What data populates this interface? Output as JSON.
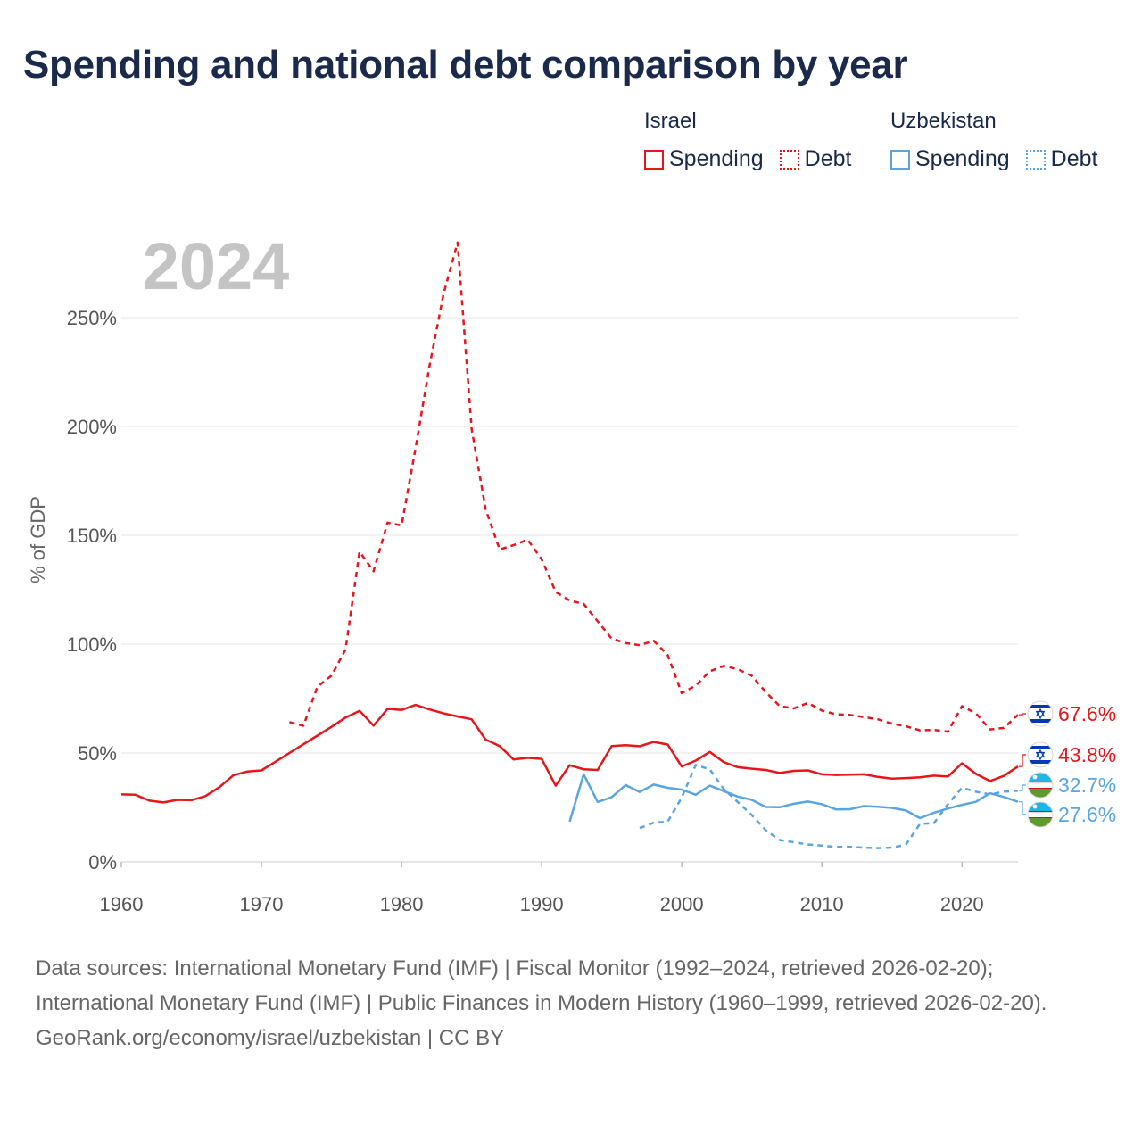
{
  "title": "Spending and national debt comparison by year",
  "legend": {
    "groups": [
      {
        "name": "Israel",
        "items": [
          {
            "label": "Spending",
            "color": "#e8151b",
            "style": "solid"
          },
          {
            "label": "Debt",
            "color": "#e8151b",
            "style": "dotted"
          }
        ]
      },
      {
        "name": "Uzbekistan",
        "items": [
          {
            "label": "Spending",
            "color": "#5aa5e0",
            "style": "solid"
          },
          {
            "label": "Debt",
            "color": "#5aa5e0",
            "style": "dotted"
          }
        ]
      }
    ]
  },
  "footer": {
    "sources": "Data sources: International Monetary Fund (IMF) | Fiscal Monitor (1992–2024, retrieved 2026-02-20); International Monetary Fund (IMF) | Public Finances in Modern History (1960–1999, retrieved 2026-02-20).",
    "credit": "GeoRank.org/economy/israel/uzbekistan | CC BY"
  },
  "chart_data": {
    "type": "line",
    "year_label": "2024",
    "ylabel": "% of GDP",
    "xlabel": "",
    "xlim": [
      1960,
      2024
    ],
    "ylim": [
      0,
      260
    ],
    "x_ticks": [
      {
        "value": 1960,
        "label": "1960"
      },
      {
        "value": 1970,
        "label": "1970"
      },
      {
        "value": 1980,
        "label": "1980"
      },
      {
        "value": 1990,
        "label": "1990"
      },
      {
        "value": 2000,
        "label": "2000"
      },
      {
        "value": 2010,
        "label": "2010"
      },
      {
        "value": 2020,
        "label": "2020"
      }
    ],
    "y_ticks": [
      {
        "value": 0,
        "label": "0%"
      },
      {
        "value": 50,
        "label": "50%"
      },
      {
        "value": 100,
        "label": "100%"
      },
      {
        "value": 150,
        "label": "150%"
      },
      {
        "value": 200,
        "label": "200%"
      },
      {
        "value": 250,
        "label": "250%"
      }
    ],
    "grid": true,
    "series": [
      {
        "name": "Israel Spending",
        "country": "Israel",
        "metric": "Spending",
        "color": "#e8151b",
        "dash": "solid",
        "end_label": "43.8%",
        "flag": "israel",
        "points": [
          [
            1960,
            31
          ],
          [
            1961,
            30.8
          ],
          [
            1962,
            28.1
          ],
          [
            1963,
            27.3
          ],
          [
            1964,
            28.5
          ],
          [
            1965,
            28.3
          ],
          [
            1966,
            30.2
          ],
          [
            1967,
            34.3
          ],
          [
            1968,
            39.8
          ],
          [
            1969,
            41.5
          ],
          [
            1970,
            42
          ],
          [
            1971,
            46
          ],
          [
            1972,
            50
          ],
          [
            1973,
            54
          ],
          [
            1974,
            58
          ],
          [
            1975,
            62
          ],
          [
            1976,
            66.3
          ],
          [
            1977,
            69.4
          ],
          [
            1978,
            62.6
          ],
          [
            1979,
            70.3
          ],
          [
            1980,
            69.8
          ],
          [
            1981,
            72.1
          ],
          [
            1982,
            70
          ],
          [
            1983,
            68.2
          ],
          [
            1984,
            66.8
          ],
          [
            1985,
            65.5
          ],
          [
            1986,
            56.2
          ],
          [
            1987,
            53.2
          ],
          [
            1988,
            47
          ],
          [
            1989,
            47.8
          ],
          [
            1990,
            47.3
          ],
          [
            1991,
            35
          ],
          [
            1992,
            44.4
          ],
          [
            1993,
            42.5
          ],
          [
            1994,
            42.2
          ],
          [
            1995,
            53.2
          ],
          [
            1996,
            53.6
          ],
          [
            1997,
            53.1
          ],
          [
            1998,
            55.1
          ],
          [
            1999,
            53.9
          ],
          [
            2000,
            43.8
          ],
          [
            2001,
            46.5
          ],
          [
            2002,
            50.5
          ],
          [
            2003,
            45.8
          ],
          [
            2004,
            43.5
          ],
          [
            2005,
            42.8
          ],
          [
            2006,
            42.2
          ],
          [
            2007,
            40.8
          ],
          [
            2008,
            41.8
          ],
          [
            2009,
            42
          ],
          [
            2010,
            40.2
          ],
          [
            2011,
            39.9
          ],
          [
            2012,
            40.1
          ],
          [
            2013,
            40.2
          ],
          [
            2014,
            39
          ],
          [
            2015,
            38.2
          ],
          [
            2016,
            38.5
          ],
          [
            2017,
            38.8
          ],
          [
            2018,
            39.6
          ],
          [
            2019,
            39.2
          ],
          [
            2020,
            45.3
          ],
          [
            2021,
            40.4
          ],
          [
            2022,
            37.1
          ],
          [
            2023,
            39.5
          ],
          [
            2024,
            43.8
          ]
        ]
      },
      {
        "name": "Israel Debt",
        "country": "Israel",
        "metric": "Debt",
        "color": "#e8151b",
        "dash": "dashed",
        "end_label": "67.6%",
        "flag": "israel",
        "points": [
          [
            1972,
            64.2
          ],
          [
            1973,
            62.5
          ],
          [
            1974,
            80.5
          ],
          [
            1975,
            85.5
          ],
          [
            1976,
            97.5
          ],
          [
            1977,
            142.5
          ],
          [
            1978,
            133.5
          ],
          [
            1979,
            155.8
          ],
          [
            1980,
            154.5
          ],
          [
            1981,
            190
          ],
          [
            1982,
            228
          ],
          [
            1983,
            261
          ],
          [
            1984,
            284.5
          ],
          [
            1985,
            199
          ],
          [
            1986,
            162
          ],
          [
            1987,
            143.5
          ],
          [
            1988,
            145.5
          ],
          [
            1989,
            148
          ],
          [
            1990,
            139
          ],
          [
            1991,
            124
          ],
          [
            1992,
            120
          ],
          [
            1993,
            118.5
          ],
          [
            1994,
            110.5
          ],
          [
            1995,
            102.5
          ],
          [
            1996,
            100.5
          ],
          [
            1997,
            99.5
          ],
          [
            1998,
            101.5
          ],
          [
            1999,
            95
          ],
          [
            2000,
            77.5
          ],
          [
            2001,
            81
          ],
          [
            2002,
            87.5
          ],
          [
            2003,
            90
          ],
          [
            2004,
            88.5
          ],
          [
            2005,
            85.5
          ],
          [
            2006,
            78
          ],
          [
            2007,
            71.5
          ],
          [
            2008,
            70.5
          ],
          [
            2009,
            73
          ],
          [
            2010,
            69.5
          ],
          [
            2011,
            67.8
          ],
          [
            2012,
            67.5
          ],
          [
            2013,
            66.5
          ],
          [
            2014,
            65.5
          ],
          [
            2015,
            63.5
          ],
          [
            2016,
            62.3
          ],
          [
            2017,
            60.4
          ],
          [
            2018,
            60.6
          ],
          [
            2019,
            59.8
          ],
          [
            2020,
            71.5
          ],
          [
            2021,
            68.2
          ],
          [
            2022,
            60.8
          ],
          [
            2023,
            61.5
          ],
          [
            2024,
            67.6
          ]
        ]
      },
      {
        "name": "Uzbekistan Spending",
        "country": "Uzbekistan",
        "metric": "Spending",
        "color": "#5aa5e0",
        "dash": "solid",
        "end_label": "27.6%",
        "flag": "uzbekistan",
        "points": [
          [
            1992,
            18.5
          ],
          [
            1993,
            40.2
          ],
          [
            1994,
            27.5
          ],
          [
            1995,
            29.7
          ],
          [
            1996,
            35.3
          ],
          [
            1997,
            32.1
          ],
          [
            1998,
            35.5
          ],
          [
            1999,
            34
          ],
          [
            2000,
            33.2
          ],
          [
            2001,
            30.8
          ],
          [
            2002,
            35
          ],
          [
            2003,
            32.5
          ],
          [
            2004,
            30
          ],
          [
            2005,
            28.5
          ],
          [
            2006,
            25.2
          ],
          [
            2007,
            25.1
          ],
          [
            2008,
            26.7
          ],
          [
            2009,
            27.7
          ],
          [
            2010,
            26.5
          ],
          [
            2011,
            24.1
          ],
          [
            2012,
            24.2
          ],
          [
            2013,
            25.6
          ],
          [
            2014,
            25.3
          ],
          [
            2015,
            24.8
          ],
          [
            2016,
            23.6
          ],
          [
            2017,
            20.1
          ],
          [
            2018,
            22.6
          ],
          [
            2019,
            24.5
          ],
          [
            2020,
            26.2
          ],
          [
            2021,
            27.6
          ],
          [
            2022,
            31.5
          ],
          [
            2023,
            29.8
          ],
          [
            2024,
            27.6
          ]
        ]
      },
      {
        "name": "Uzbekistan Debt",
        "country": "Uzbekistan",
        "metric": "Debt",
        "color": "#5aa5e0",
        "dash": "dashed",
        "end_label": "32.7%",
        "flag": "uzbekistan",
        "points": [
          [
            1997,
            15.5
          ],
          [
            1998,
            18
          ],
          [
            1999,
            18.5
          ],
          [
            2000,
            29.5
          ],
          [
            2001,
            44.5
          ],
          [
            2002,
            42.5
          ],
          [
            2003,
            33.5
          ],
          [
            2004,
            27.5
          ],
          [
            2005,
            21.5
          ],
          [
            2006,
            14.5
          ],
          [
            2007,
            10
          ],
          [
            2008,
            9
          ],
          [
            2009,
            8
          ],
          [
            2010,
            7.5
          ],
          [
            2011,
            6.8
          ],
          [
            2012,
            6.9
          ],
          [
            2013,
            6.5
          ],
          [
            2014,
            6.3
          ],
          [
            2015,
            6.5
          ],
          [
            2016,
            7.9
          ],
          [
            2017,
            17.4
          ],
          [
            2018,
            17.8
          ],
          [
            2019,
            26.5
          ],
          [
            2020,
            34
          ],
          [
            2021,
            32.2
          ],
          [
            2022,
            31
          ],
          [
            2023,
            32.2
          ],
          [
            2024,
            32.7
          ]
        ]
      }
    ]
  }
}
